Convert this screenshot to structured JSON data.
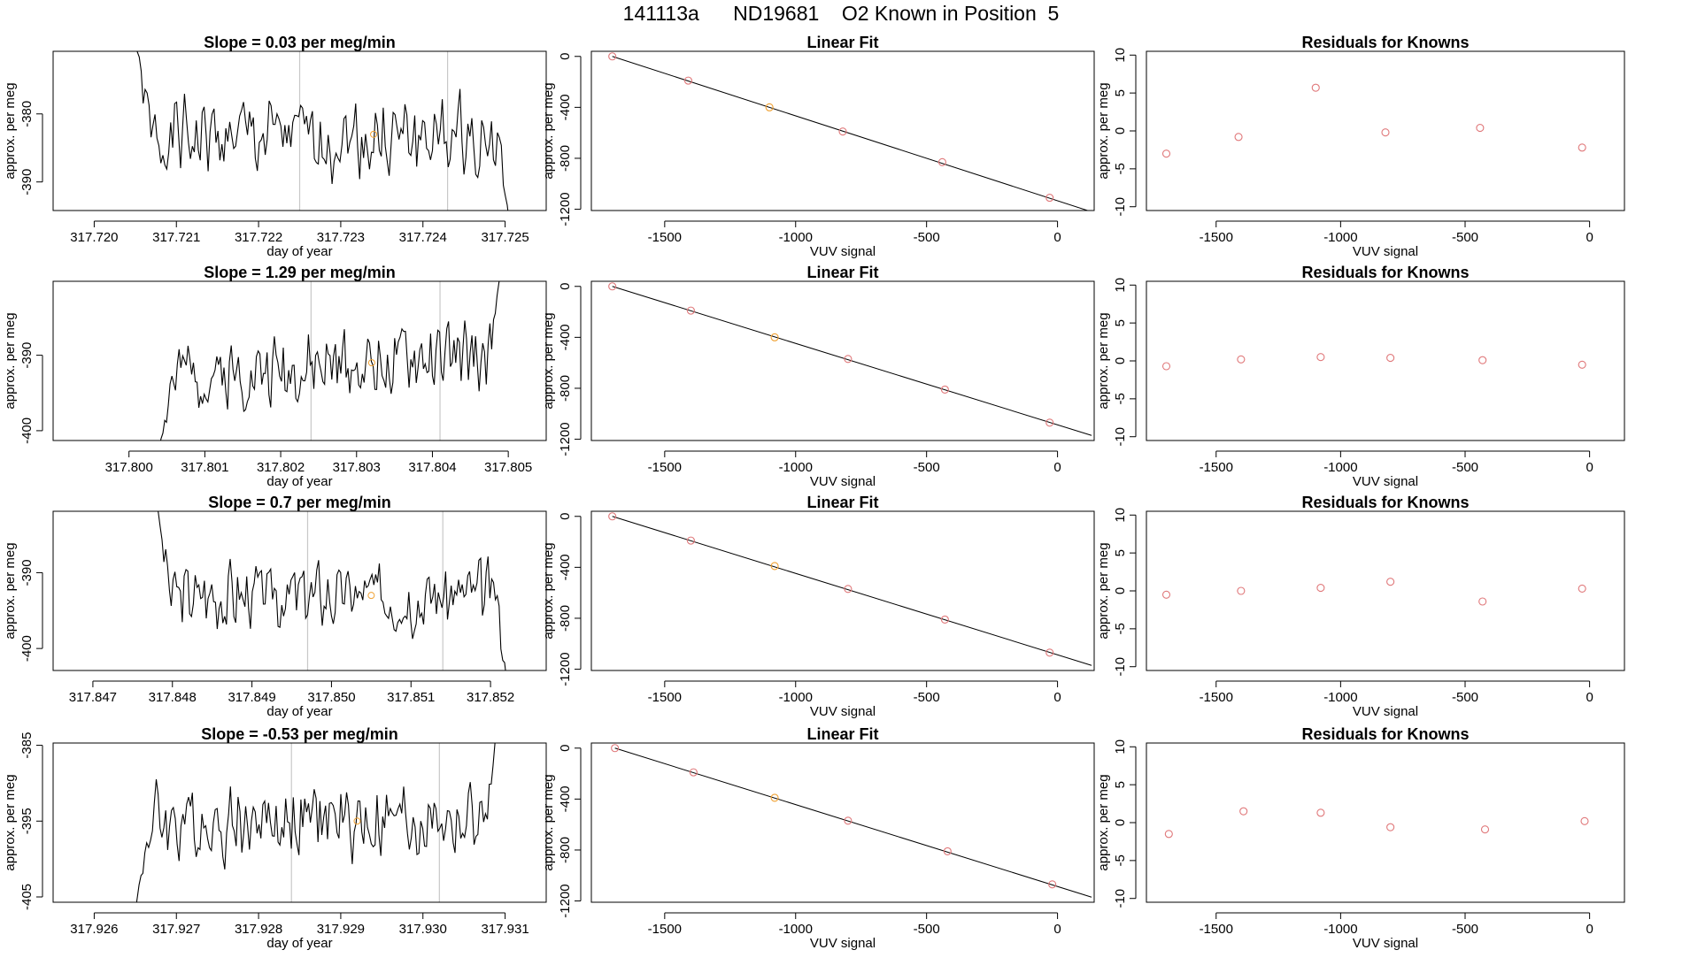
{
  "page": {
    "title": "141113a      ND19681    O2 Known in Position  5"
  },
  "colors": {
    "trace": "#000000",
    "fit_point": "#e0787a",
    "highlight_point": "#f0a030",
    "grid_line": "#c8c8c8",
    "fit_line": "#000000"
  },
  "chart_data": [
    {
      "type": "line",
      "title": "Slope =  0.03  per meg/min",
      "xlabel": "day of year",
      "ylabel": "approx. per meg",
      "xlim": [
        317.7195,
        317.7255
      ],
      "ylim": [
        -394.2,
        -370.8
      ],
      "xticks": [
        317.72,
        317.721,
        317.722,
        317.723,
        317.724,
        317.725
      ],
      "xtick_labels": [
        "317.720",
        "317.721",
        "317.722",
        "317.723",
        "317.724",
        "317.725"
      ],
      "yticks": [
        -380,
        -390
      ],
      "ytick_labels": [
        "-380",
        "-390"
      ],
      "vlines": [
        317.7225,
        317.7243
      ],
      "series": {
        "t0": 317.7205,
        "t1": 317.72505,
        "base": -383.5,
        "start": -369.0,
        "end": -396.0,
        "amp": 4.5,
        "seed": 1
      },
      "marker": {
        "x": 317.7234,
        "y": -383.0
      }
    },
    {
      "type": "scatter",
      "title": "Linear Fit",
      "xlabel": "VUV signal",
      "ylabel": "approx. per meg",
      "xlim": [
        -1780,
        140
      ],
      "ylim": [
        -1210,
        40
      ],
      "xticks": [
        -1500,
        -1000,
        -500,
        0
      ],
      "xtick_labels": [
        "-1500",
        "-1000",
        "-500",
        "0"
      ],
      "yticks": [
        0,
        -400,
        -800,
        -1200
      ],
      "ytick_labels": [
        "0",
        "-400",
        "-800",
        "-1200"
      ],
      "x": [
        -1700,
        -1410,
        -1100,
        -820,
        -440,
        -30
      ],
      "y": [
        0,
        -190,
        -400,
        -590,
        -830,
        -1110
      ],
      "highlight_index": 2,
      "fit": {
        "x": [
          -1700,
          130
        ],
        "y": [
          0,
          -1220
        ]
      }
    },
    {
      "type": "scatter",
      "title": "Residuals for Knowns",
      "xlabel": "VUV signal",
      "ylabel": "approx. per meg",
      "xlim": [
        -1780,
        140
      ],
      "ylim": [
        -10.5,
        10.5
      ],
      "xticks": [
        -1500,
        -1000,
        -500,
        0
      ],
      "xtick_labels": [
        "-1500",
        "-1000",
        "-500",
        "0"
      ],
      "yticks": [
        10,
        5,
        0,
        -5,
        -10
      ],
      "ytick_labels": [
        "10",
        "5",
        "0",
        "-5",
        "-10"
      ],
      "x": [
        -1700,
        -1410,
        -1100,
        -820,
        -440,
        -30
      ],
      "y": [
        -3.0,
        -0.8,
        5.7,
        -0.2,
        0.4,
        -2.2
      ]
    },
    {
      "type": "line",
      "title": "Slope =  1.29  per meg/min",
      "xlabel": "day of year",
      "ylabel": "approx. per meg",
      "xlim": [
        317.799,
        317.8055
      ],
      "ylim": [
        -401.3,
        -380.2
      ],
      "xticks": [
        317.8,
        317.801,
        317.802,
        317.803,
        317.804,
        317.805
      ],
      "xtick_labels": [
        "317.800",
        "317.801",
        "317.802",
        "317.803",
        "317.804",
        "317.805"
      ],
      "yticks": [
        -390,
        -400
      ],
      "ytick_labels": [
        "-390",
        "-400"
      ],
      "vlines": [
        317.8024,
        317.8041
      ],
      "series": {
        "t0": 317.8004,
        "t1": 317.8049,
        "base": -391.5,
        "start": -402.0,
        "end": -379.0,
        "amp": 3.5,
        "trend": 3.0,
        "seed": 2
      },
      "marker": {
        "x": 317.8032,
        "y": -391.0
      }
    },
    {
      "type": "scatter",
      "title": "Linear Fit",
      "xlabel": "VUV signal",
      "ylabel": "approx. per meg",
      "xlim": [
        -1780,
        140
      ],
      "ylim": [
        -1210,
        40
      ],
      "xticks": [
        -1500,
        -1000,
        -500,
        0
      ],
      "xtick_labels": [
        "-1500",
        "-1000",
        "-500",
        "0"
      ],
      "yticks": [
        0,
        -400,
        -800,
        -1200
      ],
      "ytick_labels": [
        "0",
        "-400",
        "-800",
        "-1200"
      ],
      "x": [
        -1700,
        -1400,
        -1080,
        -800,
        -430,
        -30
      ],
      "y": [
        0,
        -190,
        -400,
        -570,
        -810,
        -1070
      ],
      "highlight_index": 2,
      "fit": {
        "x": [
          -1700,
          130
        ],
        "y": [
          0,
          -1170
        ]
      }
    },
    {
      "type": "scatter",
      "title": "Residuals for Knowns",
      "xlabel": "VUV signal",
      "ylabel": "approx. per meg",
      "xlim": [
        -1780,
        140
      ],
      "ylim": [
        -10.5,
        10.5
      ],
      "xticks": [
        -1500,
        -1000,
        -500,
        0
      ],
      "xtick_labels": [
        "-1500",
        "-1000",
        "-500",
        "0"
      ],
      "yticks": [
        10,
        5,
        0,
        -5,
        -10
      ],
      "ytick_labels": [
        "10",
        "5",
        "0",
        "-5",
        "-10"
      ],
      "x": [
        -1700,
        -1400,
        -1080,
        -800,
        -430,
        -30
      ],
      "y": [
        -0.7,
        0.2,
        0.5,
        0.4,
        0.1,
        -0.5
      ]
    },
    {
      "type": "line",
      "title": "Slope =  0.7  per meg/min",
      "xlabel": "day of year",
      "ylabel": "approx. per meg",
      "xlim": [
        317.8465,
        317.8527
      ],
      "ylim": [
        -402.9,
        -381.9
      ],
      "xticks": [
        317.847,
        317.848,
        317.849,
        317.85,
        317.851,
        317.852
      ],
      "xtick_labels": [
        "317.847",
        "317.848",
        "317.849",
        "317.850",
        "317.851",
        "317.852"
      ],
      "yticks": [
        -390,
        -400
      ],
      "ytick_labels": [
        "-390",
        "-400"
      ],
      "vlines": [
        317.8497,
        317.8514
      ],
      "series": {
        "t0": 317.8478,
        "t1": 317.8522,
        "base": -393.0,
        "start": -381.0,
        "end": -404.0,
        "amp": 3.5,
        "seed": 3
      },
      "marker": {
        "x": 317.8505,
        "y": -393.0
      }
    },
    {
      "type": "scatter",
      "title": "Linear Fit",
      "xlabel": "VUV signal",
      "ylabel": "approx. per meg",
      "xlim": [
        -1780,
        140
      ],
      "ylim": [
        -1210,
        40
      ],
      "xticks": [
        -1500,
        -1000,
        -500,
        0
      ],
      "xtick_labels": [
        "-1500",
        "-1000",
        "-500",
        "0"
      ],
      "yticks": [
        0,
        -400,
        -800,
        -1200
      ],
      "ytick_labels": [
        "0",
        "-400",
        "-800",
        "-1200"
      ],
      "x": [
        -1700,
        -1400,
        -1080,
        -800,
        -430,
        -30
      ],
      "y": [
        0,
        -190,
        -390,
        -570,
        -810,
        -1070
      ],
      "highlight_index": 2,
      "fit": {
        "x": [
          -1700,
          130
        ],
        "y": [
          0,
          -1170
        ]
      }
    },
    {
      "type": "scatter",
      "title": "Residuals for Knowns",
      "xlabel": "VUV signal",
      "ylabel": "approx. per meg",
      "xlim": [
        -1780,
        140
      ],
      "ylim": [
        -10.5,
        10.5
      ],
      "xticks": [
        -1500,
        -1000,
        -500,
        0
      ],
      "xtick_labels": [
        "-1500",
        "-1000",
        "-500",
        "0"
      ],
      "yticks": [
        10,
        5,
        0,
        -5,
        -10
      ],
      "ytick_labels": [
        "10",
        "5",
        "0",
        "-5",
        "-10"
      ],
      "x": [
        -1700,
        -1400,
        -1080,
        -800,
        -430,
        -30
      ],
      "y": [
        -0.5,
        0.0,
        0.4,
        1.2,
        -1.4,
        0.3
      ]
    },
    {
      "type": "line",
      "title": "Slope =  -0.53  per meg/min",
      "xlabel": "day of year",
      "ylabel": "approx. per meg",
      "xlim": [
        317.9255,
        317.9315
      ],
      "ylim": [
        -405.7,
        -384.7
      ],
      "xticks": [
        317.926,
        317.927,
        317.928,
        317.929,
        317.93,
        317.931
      ],
      "xtick_labels": [
        "317.926",
        "317.927",
        "317.928",
        "317.929",
        "317.930",
        "317.931"
      ],
      "yticks": [
        -385,
        -395,
        -405
      ],
      "ytick_labels": [
        "-385",
        "-395",
        "-405"
      ],
      "vlines": [
        317.9284,
        317.9302
      ],
      "series": {
        "t0": 317.9265,
        "t1": 317.9309,
        "base": -395.0,
        "start": -407.0,
        "end": -383.0,
        "amp": 4.0,
        "seed": 4
      },
      "marker": {
        "x": 317.9292,
        "y": -395.0
      }
    },
    {
      "type": "scatter",
      "title": "Linear Fit",
      "xlabel": "VUV signal",
      "ylabel": "approx. per meg",
      "xlim": [
        -1780,
        140
      ],
      "ylim": [
        -1210,
        40
      ],
      "xticks": [
        -1500,
        -1000,
        -500,
        0
      ],
      "xtick_labels": [
        "-1500",
        "-1000",
        "-500",
        "0"
      ],
      "yticks": [
        0,
        -400,
        -800,
        -1200
      ],
      "ytick_labels": [
        "0",
        "-400",
        "-800",
        "-1200"
      ],
      "x": [
        -1690,
        -1390,
        -1080,
        -800,
        -420,
        -20
      ],
      "y": [
        0,
        -190,
        -390,
        -570,
        -810,
        -1070
      ],
      "highlight_index": 2,
      "fit": {
        "x": [
          -1690,
          130
        ],
        "y": [
          0,
          -1170
        ]
      }
    },
    {
      "type": "scatter",
      "title": "Residuals for Knowns",
      "xlabel": "VUV signal",
      "ylabel": "approx. per meg",
      "xlim": [
        -1780,
        140
      ],
      "ylim": [
        -10.5,
        10.5
      ],
      "xticks": [
        -1500,
        -1000,
        -500,
        0
      ],
      "xtick_labels": [
        "-1500",
        "-1000",
        "-500",
        "0"
      ],
      "yticks": [
        10,
        5,
        0,
        -5,
        -10
      ],
      "ytick_labels": [
        "10",
        "5",
        "0",
        "-5",
        "-10"
      ],
      "x": [
        -1690,
        -1390,
        -1080,
        -800,
        -420,
        -20
      ],
      "y": [
        -1.5,
        1.5,
        1.3,
        -0.6,
        -0.9,
        0.2
      ]
    }
  ]
}
